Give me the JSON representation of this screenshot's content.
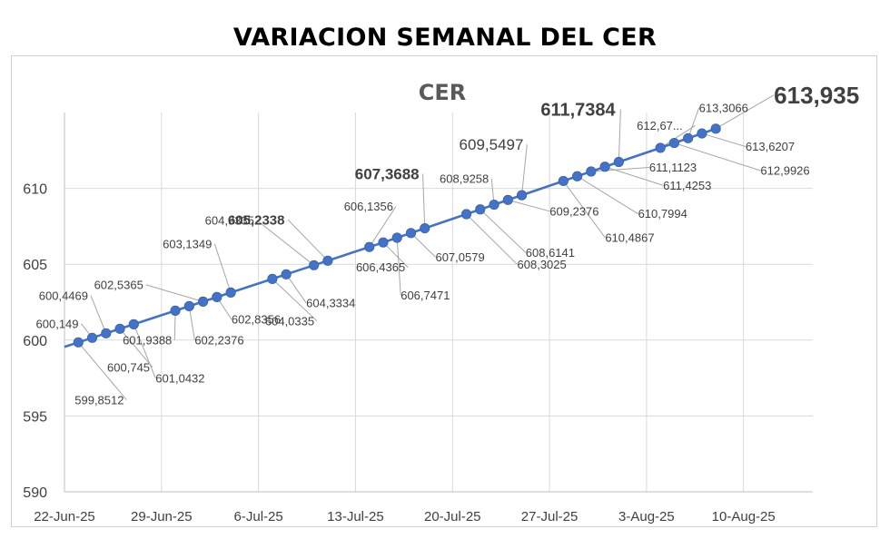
{
  "page": {
    "title": "VARIACION SEMANAL DEL CER"
  },
  "chart_data": {
    "type": "line",
    "title": "CER",
    "xlabel": "",
    "ylabel": "",
    "ylim": [
      590,
      615
    ],
    "yticks": [
      590,
      595,
      600,
      605,
      610
    ],
    "xticks": [
      {
        "date": "2025-06-22",
        "label": "22-Jun-25"
      },
      {
        "date": "2025-06-29",
        "label": "29-Jun-25"
      },
      {
        "date": "2025-07-06",
        "label": "6-Jul-25"
      },
      {
        "date": "2025-07-13",
        "label": "13-Jul-25"
      },
      {
        "date": "2025-07-20",
        "label": "20-Jul-25"
      },
      {
        "date": "2025-07-27",
        "label": "27-Jul-25"
      },
      {
        "date": "2025-08-03",
        "label": "3-Aug-25"
      },
      {
        "date": "2025-08-10",
        "label": "10-Aug-25"
      }
    ],
    "xlim": [
      "2025-06-22",
      "2025-08-15"
    ],
    "grid": "vertical",
    "legend": "none",
    "line_color": "#4472c4",
    "series": [
      {
        "points": [
          {
            "date": "2025-06-23",
            "value": 599.8512,
            "label": "599,8512"
          },
          {
            "date": "2025-06-24",
            "value": 600.149,
            "label": "600,149"
          },
          {
            "date": "2025-06-25",
            "value": 600.4469,
            "label": "600,4469"
          },
          {
            "date": "2025-06-26",
            "value": 600.745,
            "label": "600,745"
          },
          {
            "date": "2025-06-27",
            "value": 601.0432,
            "label": "601,0432"
          },
          {
            "date": "2025-06-30",
            "value": 601.9388,
            "label": "601,9388"
          },
          {
            "date": "2025-07-01",
            "value": 602.2376,
            "label": "602,2376"
          },
          {
            "date": "2025-07-02",
            "value": 602.5365,
            "label": "602,5365"
          },
          {
            "date": "2025-07-03",
            "value": 602.8356,
            "label": "602,8356"
          },
          {
            "date": "2025-07-04",
            "value": 603.1349,
            "label": "603,1349"
          },
          {
            "date": "2025-07-07",
            "value": 604.0335,
            "label": "604,0335"
          },
          {
            "date": "2025-07-08",
            "value": 604.3334,
            "label": "604,3334"
          },
          {
            "date": "2025-07-10",
            "value": 604.9335,
            "label": "604,9335"
          },
          {
            "date": "2025-07-11",
            "value": 605.2338,
            "label": "605,2338"
          },
          {
            "date": "2025-07-14",
            "value": 606.1356,
            "label": "606,1356"
          },
          {
            "date": "2025-07-15",
            "value": 606.4365,
            "label": "606,4365"
          },
          {
            "date": "2025-07-16",
            "value": 606.7471,
            "label": "606,7471"
          },
          {
            "date": "2025-07-17",
            "value": 607.0579,
            "label": "607,0579"
          },
          {
            "date": "2025-07-18",
            "value": 607.3688,
            "label": "607,3688"
          },
          {
            "date": "2025-07-21",
            "value": 608.3025,
            "label": "608,3025"
          },
          {
            "date": "2025-07-22",
            "value": 608.6141,
            "label": "608,6141"
          },
          {
            "date": "2025-07-23",
            "value": 608.9258,
            "label": "608,9258"
          },
          {
            "date": "2025-07-24",
            "value": 609.2376,
            "label": "609,2376"
          },
          {
            "date": "2025-07-25",
            "value": 609.5497,
            "label": "609,5497"
          },
          {
            "date": "2025-07-28",
            "value": 610.4867,
            "label": "610,4867"
          },
          {
            "date": "2025-07-29",
            "value": 610.7994,
            "label": "610,7994"
          },
          {
            "date": "2025-07-30",
            "value": 611.1123,
            "label": "611,1123"
          },
          {
            "date": "2025-07-31",
            "value": 611.4253,
            "label": "611,4253"
          },
          {
            "date": "2025-08-01",
            "value": 611.7384,
            "label": "611,7384"
          },
          {
            "date": "2025-08-04",
            "value": 612.67,
            "label": "612,67..."
          },
          {
            "date": "2025-08-05",
            "value": 612.9926,
            "label": "612,9926"
          },
          {
            "date": "2025-08-06",
            "value": 613.3066,
            "label": "613,3066"
          },
          {
            "date": "2025-08-07",
            "value": 613.6207,
            "label": "613,6207"
          },
          {
            "date": "2025-08-08",
            "value": 613.935,
            "label": "613,935"
          }
        ]
      }
    ]
  }
}
